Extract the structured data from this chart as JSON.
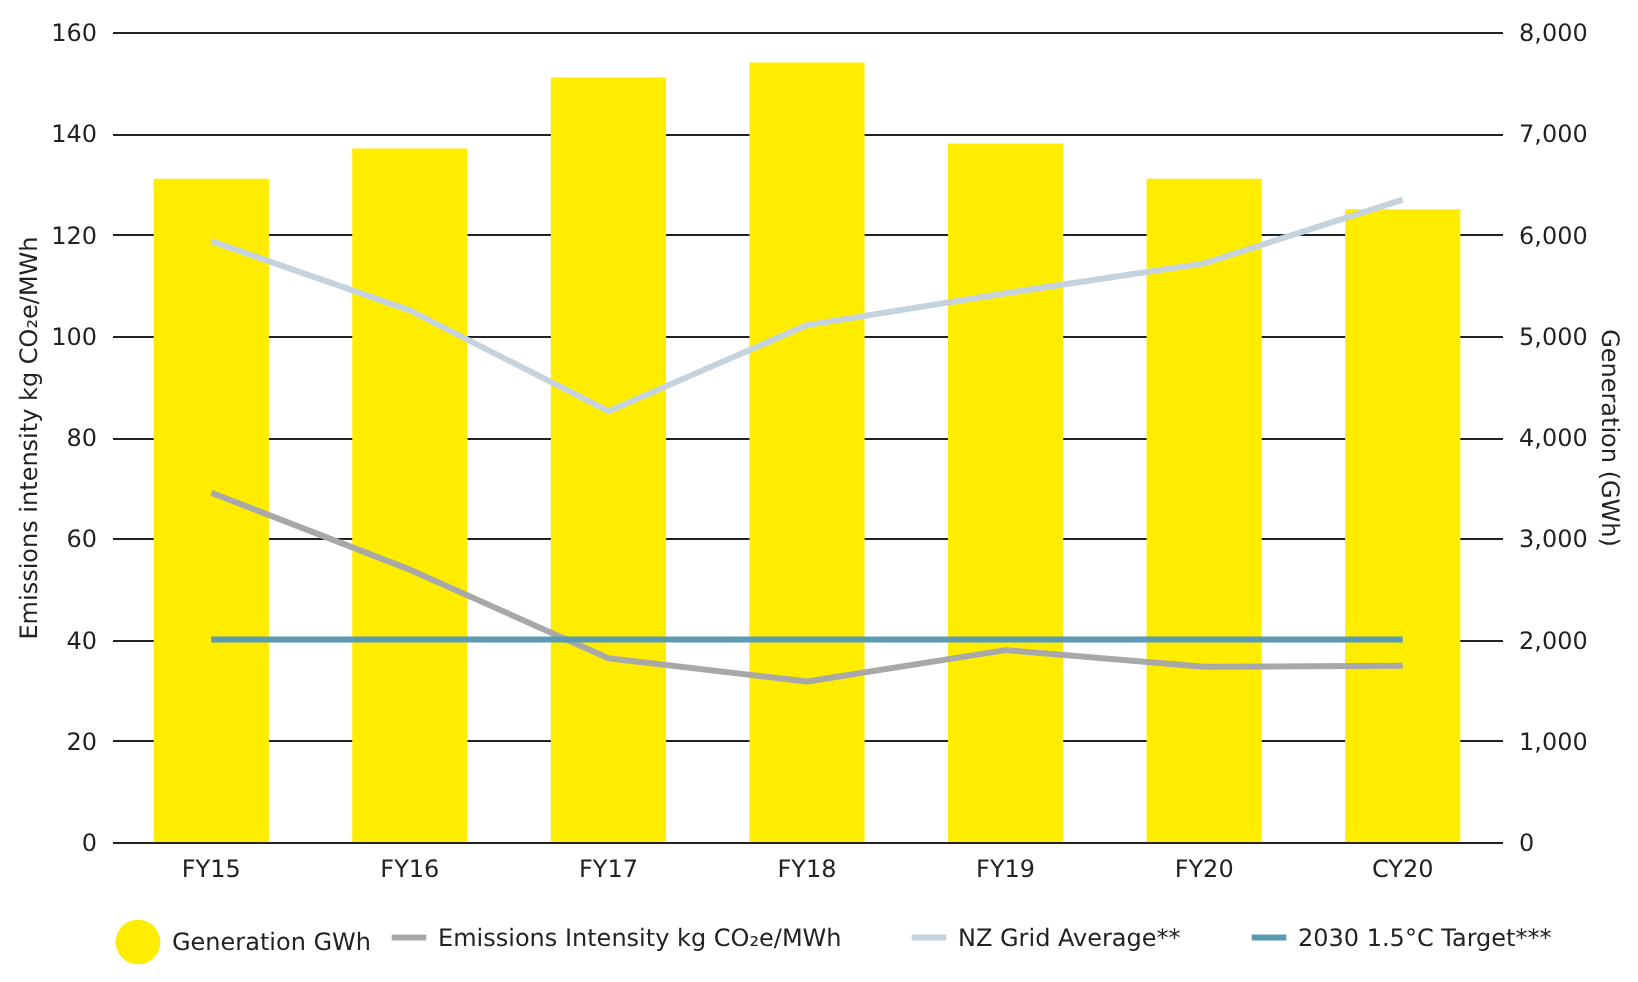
{
  "chart_data": {
    "type": "bar",
    "ylabel": "Emissions intensity kg CO₂e/MWh",
    "y2label": "Generation (GWh)",
    "categories": [
      "FY15",
      "FY16",
      "FY17",
      "FY18",
      "FY19",
      "FY20",
      "CY20"
    ],
    "series": [
      {
        "name": "Generation GWh",
        "axis": "y2",
        "color": "#ffed00",
        "values": [
          6550,
          6850,
          7550,
          7700,
          6900,
          6550,
          6250
        ]
      },
      {
        "name": "Emissions Intensity kg CO₂e/MWh",
        "type": "line",
        "color": "#a8a8a8",
        "values": [
          69.0,
          53.8,
          36.3,
          31.7,
          37.9,
          34.6,
          34.8
        ]
      },
      {
        "name": "NZ Grid Average**",
        "type": "line",
        "color": "#c5d3de",
        "values": [
          118.7,
          105.0,
          85.1,
          102.1,
          108.4,
          114.3,
          126.9
        ]
      },
      {
        "name": "2030 1.5°C Target***",
        "type": "line",
        "color": "#5b9ab5",
        "values": [
          40,
          40,
          40,
          40,
          40,
          40,
          40
        ]
      }
    ],
    "ylim": [
      0,
      160
    ],
    "yticks": [
      0,
      20,
      40,
      60,
      80,
      100,
      120,
      140,
      160
    ],
    "y2lim": [
      0,
      8000
    ],
    "y2ticks": [
      0,
      {
        "value": 1000,
        "label": "1,000"
      },
      {
        "value": 2000,
        "label": "2,000"
      },
      {
        "value": 3000,
        "label": "3,000"
      },
      {
        "value": 4000,
        "label": "4,000"
      },
      {
        "value": 5000,
        "label": "5,000"
      },
      {
        "value": 6000,
        "label": "6,000"
      },
      {
        "value": 7000,
        "label": "7,000"
      },
      {
        "value": 8000,
        "label": "8,000"
      }
    ],
    "grid": "y",
    "legend": "bottom",
    "marker": "none",
    "line_style": "solid"
  }
}
